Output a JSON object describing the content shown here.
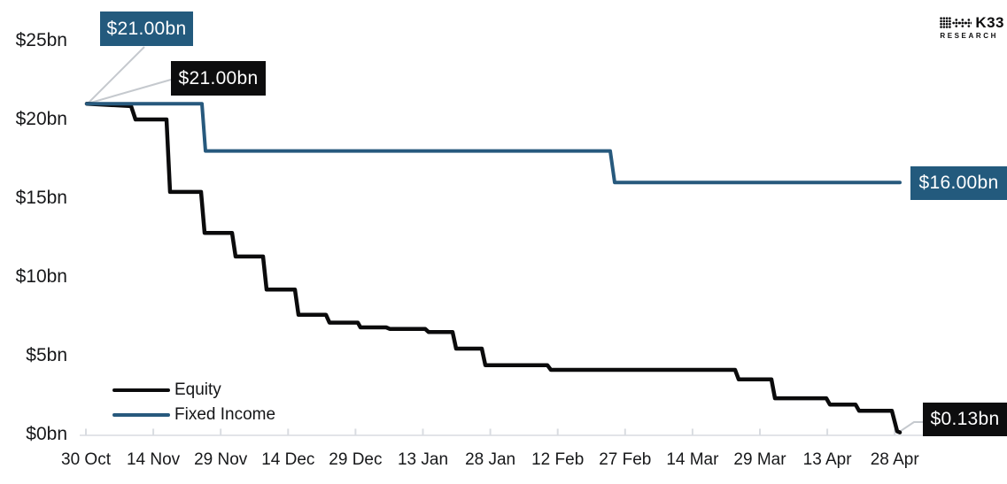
{
  "logo": {
    "brand": "K33",
    "sub": "RESEARCH"
  },
  "legend": {
    "items": [
      {
        "label": "Equity",
        "color": "#0b0b0c"
      },
      {
        "label": "Fixed Income",
        "color": "#27597d"
      }
    ]
  },
  "colors": {
    "equity_line": "#0b0b0c",
    "fixed_income_line": "#27597d",
    "callout_blue_bg": "#235a7d",
    "callout_black_bg": "#0d0d0e",
    "axis": "#d9dce1",
    "leader": "#c5c9ce",
    "text": "#17181a"
  },
  "chart_data": {
    "type": "line",
    "title": "",
    "xlabel": "",
    "ylabel": "",
    "y_unit": "$bn",
    "ylim": [
      0,
      25
    ],
    "grid": false,
    "legend_position": "bottom-left",
    "x_tick_labels": [
      "30 Oct",
      "14 Nov",
      "29 Nov",
      "14 Dec",
      "29 Dec",
      "13 Jan",
      "28 Jan",
      "12 Feb",
      "27 Feb",
      "14 Mar",
      "29 Mar",
      "13 Apr",
      "28 Apr"
    ],
    "y_ticks": [
      {
        "label": "$0bn",
        "value": 0
      },
      {
        "label": "$5bn",
        "value": 5
      },
      {
        "label": "$10bn",
        "value": 10
      },
      {
        "label": "$15bn",
        "value": 15
      },
      {
        "label": "$20bn",
        "value": 20
      },
      {
        "label": "$25bn",
        "value": 25
      }
    ],
    "series": [
      {
        "name": "Equity",
        "color": "#0b0b0c",
        "stroke_width": 4.5,
        "start_value_bn": 21.0,
        "end_value_bn": 0.13,
        "plateaus_bn": [
          21.0,
          20.0,
          15.4,
          12.8,
          11.3,
          9.2,
          7.6,
          7.1,
          6.8,
          6.7,
          6.5,
          5.45,
          4.4,
          4.1,
          3.5,
          2.3,
          1.9,
          1.5,
          0.13
        ],
        "points": [
          [
            98,
            21.0
          ],
          [
            148,
            20.85
          ],
          [
            153,
            20.0
          ],
          [
            188,
            20.0
          ],
          [
            192,
            15.4
          ],
          [
            227,
            15.4
          ],
          [
            231,
            12.8
          ],
          [
            262,
            12.8
          ],
          [
            266,
            11.3
          ],
          [
            297,
            11.3
          ],
          [
            301,
            9.2
          ],
          [
            333,
            9.2
          ],
          [
            337,
            7.6
          ],
          [
            368,
            7.6
          ],
          [
            372,
            7.1
          ],
          [
            404,
            7.1
          ],
          [
            407,
            6.8
          ],
          [
            436,
            6.8
          ],
          [
            440,
            6.7
          ],
          [
            480,
            6.7
          ],
          [
            484,
            6.5
          ],
          [
            511,
            6.5
          ],
          [
            515,
            5.45
          ],
          [
            544,
            5.45
          ],
          [
            548,
            4.4
          ],
          [
            618,
            4.4
          ],
          [
            622,
            4.1
          ],
          [
            830,
            4.1
          ],
          [
            834,
            3.5
          ],
          [
            871,
            3.5
          ],
          [
            875,
            2.3
          ],
          [
            933,
            2.3
          ],
          [
            937,
            1.9
          ],
          [
            966,
            1.9
          ],
          [
            970,
            1.5
          ],
          [
            1007,
            1.5
          ],
          [
            1013,
            0.2
          ],
          [
            1016,
            0.13
          ]
        ]
      },
      {
        "name": "Fixed Income",
        "color": "#27597d",
        "stroke_width": 4,
        "start_value_bn": 21.0,
        "end_value_bn": 16.0,
        "plateaus_bn": [
          21.0,
          18.0,
          16.0
        ],
        "points": [
          [
            98,
            21.0
          ],
          [
            228,
            21.0
          ],
          [
            232,
            18.0
          ],
          [
            689,
            18.0
          ],
          [
            694,
            16.0
          ],
          [
            1016,
            16.0
          ]
        ]
      }
    ],
    "annotations": [
      {
        "label": "$21.00bn",
        "series": "Fixed Income",
        "value_bn": 21.0,
        "bg": "#235a7d",
        "leader": [
          [
            99,
            117
          ],
          [
            163,
            53
          ]
        ]
      },
      {
        "label": "$21.00bn",
        "series": "Equity",
        "value_bn": 21.0,
        "bg": "#0d0d0e",
        "leader": [
          [
            99,
            117
          ],
          [
            193,
            90
          ]
        ]
      },
      {
        "label": "$16.00bn",
        "series": "Fixed Income",
        "value_bn": 16.0,
        "bg": "#235a7d",
        "leader": []
      },
      {
        "label": "$0.13bn",
        "series": "Equity",
        "value_bn": 0.13,
        "bg": "#0d0d0e",
        "leader": [
          [
            1014,
            489
          ],
          [
            1032,
            477
          ],
          [
            1042,
            477
          ]
        ]
      }
    ]
  }
}
